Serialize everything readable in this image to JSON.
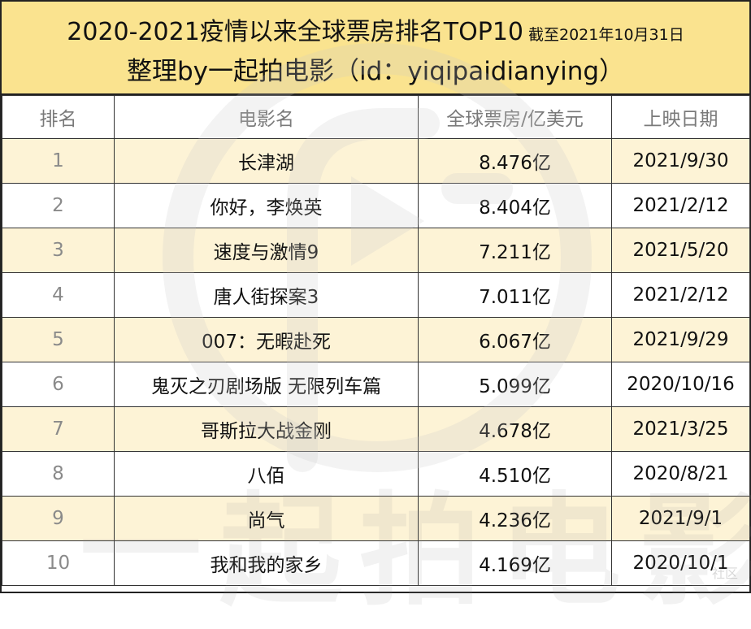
{
  "header": {
    "title": "2020-2021疫情以来全球票房排名TOP10",
    "date_note": "截至2021年10月31日",
    "subtitle": "整理by一起拍电影（id：yiqipaidianying）"
  },
  "table": {
    "columns": [
      "排名",
      "电影名",
      "全球票房/亿美元",
      "上映日期"
    ],
    "rows": [
      {
        "rank": "1",
        "title": "长津湖",
        "gross": "8.476亿",
        "date": "2021/9/30"
      },
      {
        "rank": "2",
        "title": "你好，李焕英",
        "gross": "8.404亿",
        "date": "2021/2/12"
      },
      {
        "rank": "3",
        "title": "速度与激情9",
        "gross": "7.211亿",
        "date": "2021/5/20"
      },
      {
        "rank": "4",
        "title": "唐人街探案3",
        "gross": "7.011亿",
        "date": "2021/2/12"
      },
      {
        "rank": "5",
        "title": "007：无暇赴死",
        "gross": "6.067亿",
        "date": "2021/9/29"
      },
      {
        "rank": "6",
        "title": "鬼灭之刃剧场版 无限列车篇",
        "gross": "5.099亿",
        "date": "2020/10/16"
      },
      {
        "rank": "7",
        "title": "哥斯拉大战金刚",
        "gross": "4.678亿",
        "date": "2021/3/25"
      },
      {
        "rank": "8",
        "title": "八佰",
        "gross": "4.510亿",
        "date": "2020/8/21"
      },
      {
        "rank": "9",
        "title": "尚气",
        "gross": "4.236亿",
        "date": "2021/9/1"
      },
      {
        "rank": "10",
        "title": "我和我的家乡",
        "gross": "4.169亿",
        "date": "2020/10/1"
      }
    ]
  },
  "watermark": {
    "brand_text": "一起拍电影",
    "corner_text": "社区"
  },
  "colors": {
    "header_bg": "#fae38f",
    "row_highlight": "#fdf3d6",
    "logo_grey": "#c8c8c8"
  }
}
